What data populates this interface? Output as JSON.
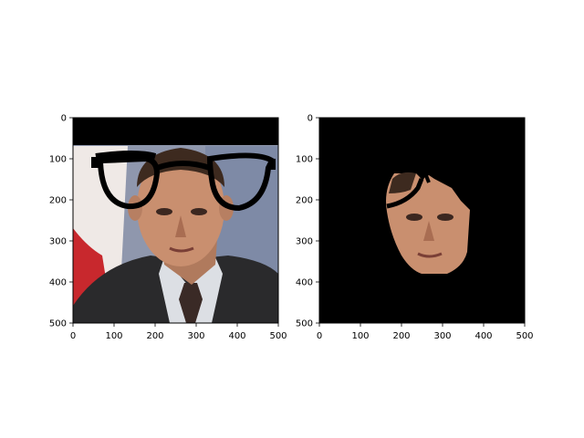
{
  "chart_data": [
    {
      "type": "image",
      "panel": "left",
      "title": "",
      "xlabel": "",
      "ylabel": "",
      "xlim": [
        0,
        500
      ],
      "ylim": [
        500,
        0
      ],
      "xticks": [
        0,
        100,
        200,
        300,
        400,
        500
      ],
      "yticks": [
        0,
        100,
        200,
        300,
        400,
        500
      ],
      "xtick_labels": [
        "0",
        "100",
        "200",
        "300",
        "400",
        "500"
      ],
      "ytick_labels": [
        "0",
        "100",
        "200",
        "300",
        "400",
        "500"
      ],
      "content": "portrait photo of a man in a dark suit with cartoon eyeglasses overlay; top band black"
    },
    {
      "type": "image",
      "panel": "right",
      "title": "",
      "xlabel": "",
      "ylabel": "",
      "xlim": [
        0,
        500
      ],
      "ylim": [
        500,
        0
      ],
      "xticks": [
        0,
        100,
        200,
        300,
        400,
        500
      ],
      "yticks": [
        0,
        100,
        200,
        300,
        400,
        500
      ],
      "xtick_labels": [
        "0",
        "100",
        "200",
        "300",
        "400",
        "500"
      ],
      "ytick_labels": [
        "0",
        "100",
        "200",
        "300",
        "400",
        "500"
      ],
      "content": "segmented face region on black background"
    }
  ],
  "colors": {
    "background": "#000000",
    "skin": "#c98f6f",
    "skin_shadow": "#9a6248",
    "hair": "#3d2a1f",
    "suit": "#2a2a2c",
    "shirt": "#dcdfe4",
    "tie": "#3a2a26",
    "wall": "#8f97ad",
    "flag_red": "#c8282d",
    "flag_white": "#efe9e6"
  }
}
